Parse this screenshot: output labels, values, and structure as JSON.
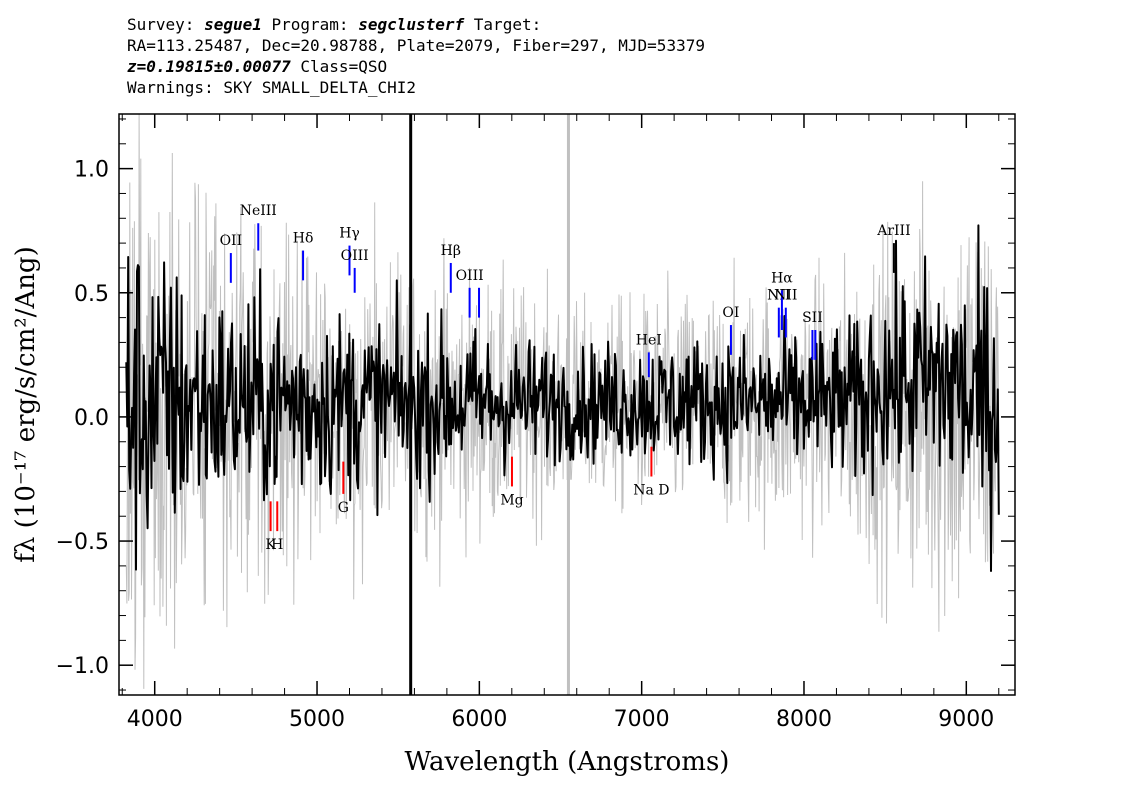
{
  "header": {
    "line1": {
      "survey_label": "Survey: ",
      "survey": "segue1",
      "program_label": " Program: ",
      "program": "segclusterf",
      "target_label": " Target:"
    },
    "line2": "RA=113.25487, Dec=20.98788, Plate=2079, Fiber=297, MJD=53379",
    "line3": {
      "z": "z=0.19815±0.00077",
      "class": " Class=QSO"
    },
    "line4": "Warnings: SKY SMALL_DELTA_CHI2"
  },
  "chart_data": {
    "type": "line",
    "xlabel": "Wavelength (Angstroms)",
    "ylabel": "fλ (10⁻¹⁷ erg/s/cm²/Ang)",
    "xlim": [
      3780,
      9300
    ],
    "ylim": [
      -1.12,
      1.22
    ],
    "xticks": [
      4000,
      5000,
      6000,
      7000,
      8000,
      9000
    ],
    "xtick_labels": [
      "4000",
      "5000",
      "6000",
      "7000",
      "8000",
      "9000"
    ],
    "yticks": [
      -1.0,
      -0.5,
      0.0,
      0.5,
      1.0
    ],
    "ytick_labels": [
      "−1.0",
      "−0.5",
      "0.0",
      "0.5",
      "1.0"
    ],
    "series": [
      {
        "color": "#c0c0c0",
        "description": "error band"
      },
      {
        "color": "#000000",
        "description": "flux"
      }
    ],
    "x_range": [
      3825,
      9200
    ],
    "sky_line_x": [
      5577,
      6549
    ],
    "emission_lines": [
      {
        "label": "OII",
        "x": 4469,
        "y_bottom": 0.54,
        "y_top": 0.66,
        "color": "#0000ff"
      },
      {
        "label": "NeIII",
        "x": 4638,
        "y_bottom": 0.67,
        "y_top": 0.78,
        "color": "#0000ff"
      },
      {
        "label": "Hδ",
        "x": 4914,
        "y_bottom": 0.55,
        "y_top": 0.67,
        "color": "#0000ff"
      },
      {
        "label": "Hγ",
        "x": 5200,
        "y_bottom": 0.57,
        "y_top": 0.69,
        "color": "#0000ff"
      },
      {
        "label": "OIII",
        "x": 5232,
        "y_bottom": 0.5,
        "y_top": 0.6,
        "color": "#0000ff"
      },
      {
        "label": "Hβ",
        "x": 5824,
        "y_bottom": 0.5,
        "y_top": 0.62,
        "color": "#0000ff"
      },
      {
        "label": "OIII",
        "x": 5940,
        "y_bottom": 0.4,
        "y_top": 0.52,
        "color": "#0000ff"
      },
      {
        "label": "",
        "x": 5998,
        "y_bottom": 0.4,
        "y_top": 0.52,
        "color": "#0000ff"
      },
      {
        "label": "HeI",
        "x": 7044,
        "y_bottom": 0.16,
        "y_top": 0.26,
        "color": "#0000ff"
      },
      {
        "label": "OI",
        "x": 7550,
        "y_bottom": 0.25,
        "y_top": 0.37,
        "color": "#0000ff"
      },
      {
        "label": "NII",
        "x": 7845,
        "y_bottom": 0.32,
        "y_top": 0.44,
        "color": "#0000ff"
      },
      {
        "label": "Hα",
        "x": 7864,
        "y_bottom": 0.35,
        "y_top": 0.51,
        "color": "#0000ff"
      },
      {
        "label": "NII",
        "x": 7888,
        "y_bottom": 0.32,
        "y_top": 0.44,
        "color": "#0000ff"
      },
      {
        "label": "SII",
        "x": 8052,
        "y_bottom": 0.23,
        "y_top": 0.35,
        "color": "#0000ff"
      },
      {
        "label": "",
        "x": 8070,
        "y_bottom": 0.23,
        "y_top": 0.35,
        "color": "#0000ff"
      },
      {
        "label": "ArIII",
        "x": 8554,
        "y_bottom": 0.58,
        "y_top": 0.7,
        "color": "#000000"
      }
    ],
    "absorption_lines": [
      {
        "label": "K",
        "x": 4714,
        "y_top": -0.34,
        "y_bottom": -0.46,
        "color": "#ff0000"
      },
      {
        "label": "H",
        "x": 4755,
        "y_top": -0.34,
        "y_bottom": -0.46,
        "color": "#ff0000"
      },
      {
        "label": "G",
        "x": 5162,
        "y_top": -0.18,
        "y_bottom": -0.31,
        "color": "#ff0000"
      },
      {
        "label": "Mg",
        "x": 6201,
        "y_top": -0.16,
        "y_bottom": -0.28,
        "color": "#ff0000"
      },
      {
        "label": "Na D",
        "x": 7060,
        "y_top": -0.12,
        "y_bottom": -0.24,
        "color": "#ff0000"
      }
    ]
  }
}
